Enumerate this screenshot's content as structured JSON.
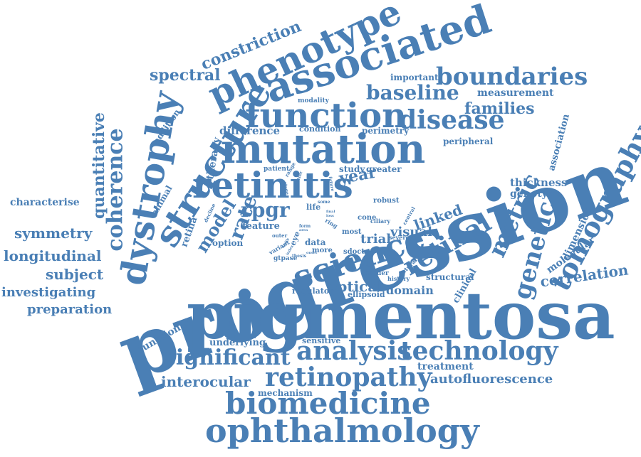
{
  "color": "#4a7fb5",
  "words": [
    {
      "text": "progression"
    },
    {
      "text": "pigmentosa"
    },
    {
      "text": "ophthalmology"
    },
    {
      "text": "biomedicine"
    },
    {
      "text": "mutation"
    },
    {
      "text": "function"
    },
    {
      "text": "associated"
    },
    {
      "text": "phenotype"
    },
    {
      "text": "structure"
    },
    {
      "text": "dystrophy"
    },
    {
      "text": "retinitis"
    },
    {
      "text": "science"
    },
    {
      "text": "retinopathy"
    },
    {
      "text": "technology"
    },
    {
      "text": "analysis"
    },
    {
      "text": "significant"
    },
    {
      "text": "tomography"
    },
    {
      "text": "genetic"
    },
    {
      "text": "metric"
    },
    {
      "text": "retinal"
    },
    {
      "text": "disease"
    },
    {
      "text": "boundaries"
    },
    {
      "text": "baseline"
    },
    {
      "text": "families"
    },
    {
      "text": "constriction"
    },
    {
      "text": "spectral"
    },
    {
      "text": "coherence"
    },
    {
      "text": "quantitative"
    },
    {
      "text": "symmetry"
    },
    {
      "text": "longitudinal"
    },
    {
      "text": "subject"
    },
    {
      "text": "investigating"
    },
    {
      "text": "preparation"
    },
    {
      "text": "characterise"
    },
    {
      "text": "interocular"
    },
    {
      "text": "autofluorescence"
    },
    {
      "text": "correlation"
    },
    {
      "text": "rpgr"
    },
    {
      "text": "rate"
    },
    {
      "text": "model"
    },
    {
      "text": "linked"
    },
    {
      "text": "visual"
    },
    {
      "text": "optical"
    },
    {
      "text": "domain"
    },
    {
      "text": "trial"
    },
    {
      "text": "year"
    },
    {
      "text": "therapy"
    },
    {
      "text": "difference"
    },
    {
      "text": "condition"
    },
    {
      "text": "perimetry"
    },
    {
      "text": "peripheral"
    },
    {
      "text": "measurement"
    },
    {
      "text": "important"
    },
    {
      "text": "thickness"
    },
    {
      "text": "genotype"
    },
    {
      "text": "association"
    },
    {
      "text": "dimension"
    },
    {
      "text": "molecular"
    },
    {
      "text": "treatment"
    },
    {
      "text": "mechanism"
    },
    {
      "text": "functional"
    },
    {
      "text": "underlying"
    },
    {
      "text": "sensitive"
    },
    {
      "text": "structural"
    },
    {
      "text": "clinical"
    },
    {
      "text": "regulator"
    },
    {
      "text": "ellipsoid"
    },
    {
      "text": "border"
    },
    {
      "text": "history"
    },
    {
      "text": "natural"
    },
    {
      "text": "study"
    },
    {
      "text": "greater"
    },
    {
      "text": "addition"
    },
    {
      "text": "animal"
    },
    {
      "text": "retina"
    },
    {
      "text": "feature"
    },
    {
      "text": "option"
    },
    {
      "text": "data"
    },
    {
      "text": "more"
    },
    {
      "text": "sdoct"
    },
    {
      "text": "life"
    },
    {
      "text": "cone"
    },
    {
      "text": "ciliary"
    },
    {
      "text": "robust"
    },
    {
      "text": "most"
    },
    {
      "text": "severe"
    },
    {
      "text": "gtpase"
    },
    {
      "text": "patient"
    },
    {
      "text": "modality"
    },
    {
      "text": "eye"
    },
    {
      "text": "ring"
    },
    {
      "text": "central"
    },
    {
      "text": "outer"
    },
    {
      "text": "variant"
    },
    {
      "text": "decline"
    },
    {
      "text": "better"
    },
    {
      "text": "some"
    },
    {
      "text": "range"
    },
    {
      "text": "future"
    },
    {
      "text": "layer"
    },
    {
      "text": "stage"
    },
    {
      "text": "final"
    },
    {
      "text": "loss"
    },
    {
      "text": "thesis"
    },
    {
      "text": "form"
    },
    {
      "text": "area"
    },
    {
      "text": "width"
    },
    {
      "text": "index"
    },
    {
      "text": "onset"
    }
  ]
}
